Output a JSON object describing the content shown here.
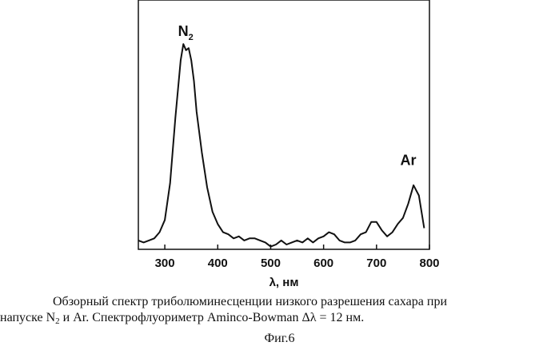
{
  "chart_data": {
    "type": "line",
    "xlabel": "λ, нм",
    "ylabel": "",
    "xlim": [
      250,
      800
    ],
    "ylim": [
      0,
      1
    ],
    "x_ticks": [
      300,
      400,
      500,
      600,
      700,
      800
    ],
    "grid": false,
    "legend": "none",
    "annotations": [
      {
        "text": "N",
        "sub": "2",
        "x": 340,
        "y": 0.98
      },
      {
        "text": "Ar",
        "x": 760,
        "y": 0.35
      }
    ],
    "series": [
      {
        "x": [
          250,
          260,
          270,
          280,
          290,
          300,
          310,
          320,
          330,
          335,
          340,
          345,
          350,
          355,
          360,
          370,
          380,
          390,
          400,
          410,
          420,
          430,
          440,
          450,
          460,
          470,
          480,
          490,
          500,
          510,
          520,
          530,
          540,
          550,
          560,
          570,
          580,
          590,
          600,
          610,
          620,
          630,
          640,
          650,
          660,
          670,
          680,
          690,
          700,
          710,
          720,
          730,
          740,
          750,
          760,
          770,
          780,
          790
        ],
        "y": [
          0.02,
          0.01,
          0.02,
          0.03,
          0.06,
          0.12,
          0.3,
          0.62,
          0.9,
          0.98,
          0.95,
          0.96,
          0.9,
          0.8,
          0.65,
          0.45,
          0.28,
          0.16,
          0.1,
          0.06,
          0.05,
          0.03,
          0.04,
          0.02,
          0.03,
          0.03,
          0.02,
          0.01,
          -0.01,
          0.0,
          0.02,
          0.0,
          0.01,
          0.02,
          0.01,
          0.03,
          0.01,
          0.03,
          0.04,
          0.06,
          0.05,
          0.02,
          0.01,
          0.01,
          0.02,
          0.05,
          0.06,
          0.11,
          0.11,
          0.07,
          0.04,
          0.06,
          0.1,
          0.13,
          0.2,
          0.29,
          0.24,
          0.08
        ]
      }
    ]
  },
  "caption": {
    "line1": "Обзорный спектр триболюминесценции низкого разрешения сахара при",
    "line2_pre": "напуске N",
    "line2_sub": "2",
    "line2_post": " и Ar. Спектрофлуориметр Aminco-Bowman Δλ = 12 нм.",
    "figure_label": "Фиг.6"
  }
}
